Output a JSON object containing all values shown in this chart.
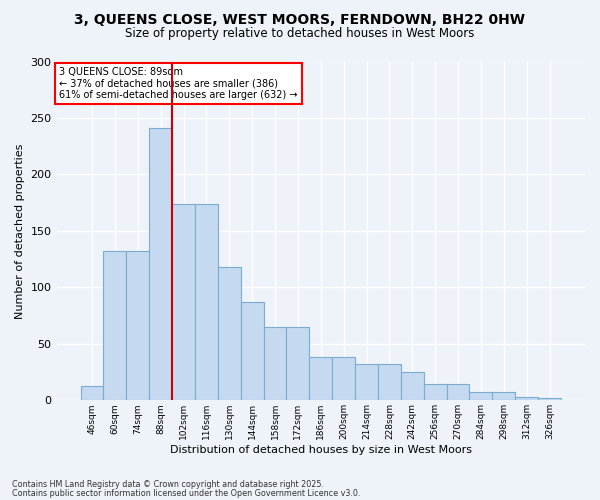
{
  "title_line1": "3, QUEENS CLOSE, WEST MOORS, FERNDOWN, BH22 0HW",
  "title_line2": "Size of property relative to detached houses in West Moors",
  "xlabel": "Distribution of detached houses by size in West Moors",
  "ylabel": "Number of detached properties",
  "categories": [
    "46sqm",
    "60sqm",
    "74sqm",
    "88sqm",
    "102sqm",
    "116sqm",
    "130sqm",
    "144sqm",
    "158sqm",
    "172sqm",
    "186sqm",
    "200sqm",
    "214sqm",
    "228sqm",
    "242sqm",
    "256sqm",
    "270sqm",
    "284sqm",
    "298sqm",
    "312sqm",
    "326sqm"
  ],
  "values": [
    13,
    132,
    132,
    241,
    174,
    174,
    118,
    87,
    65,
    65,
    38,
    38,
    32,
    32,
    25,
    14,
    14,
    7,
    7,
    3,
    2
  ],
  "bar_color": "#c5d9f0",
  "bar_edge_color": "#7aadcf",
  "vline_idx": 3,
  "vline_color": "#cc0000",
  "annotation_text": "3 QUEENS CLOSE: 89sqm\n← 37% of detached houses are smaller (386)\n61% of semi-detached houses are larger (632) →",
  "footnote1": "Contains HM Land Registry data © Crown copyright and database right 2025.",
  "footnote2": "Contains public sector information licensed under the Open Government Licence v3.0.",
  "bg_color": "#eef2f9",
  "ylim": [
    0,
    300
  ],
  "yticks": [
    0,
    50,
    100,
    150,
    200,
    250,
    300
  ]
}
